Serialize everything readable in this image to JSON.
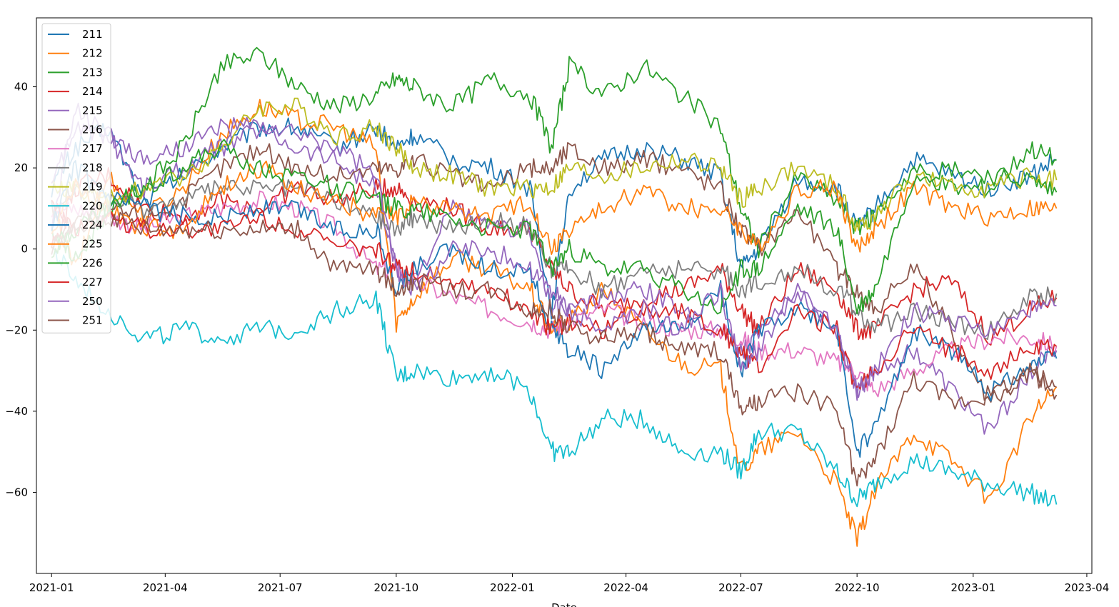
{
  "chart_data": {
    "type": "line",
    "title": "",
    "xlabel": "Date",
    "ylabel": "",
    "x_ticks": [
      "2021-01",
      "2021-04",
      "2021-07",
      "2021-10",
      "2022-01",
      "2022-04",
      "2022-07",
      "2022-10",
      "2023-01",
      "2023-04"
    ],
    "y_ticks": [
      "40",
      "20",
      "0",
      "−20",
      "−40",
      "−60"
    ],
    "ylim": [
      -80,
      57
    ],
    "xlim": [
      "2020-12-20",
      "2023-04-05"
    ],
    "legend_position": "upper-left",
    "x": [
      "2021-01-01",
      "2021-01-20",
      "2021-02-15",
      "2021-03-15",
      "2021-04-15",
      "2021-05-15",
      "2021-06-15",
      "2021-07-15",
      "2021-08-15",
      "2021-09-15",
      "2021-10-01",
      "2021-10-15",
      "2021-11-15",
      "2021-12-15",
      "2022-01-15",
      "2022-02-01",
      "2022-02-15",
      "2022-03-15",
      "2022-04-15",
      "2022-05-15",
      "2022-06-15",
      "2022-07-01",
      "2022-07-15",
      "2022-08-15",
      "2022-09-15",
      "2022-10-01",
      "2022-10-15",
      "2022-11-15",
      "2022-12-15",
      "2023-01-15",
      "2023-02-15",
      "2023-03-08"
    ],
    "series": [
      {
        "name": "211",
        "color": "#1f77b4",
        "values": [
          15,
          25,
          30,
          12,
          18,
          25,
          30,
          30,
          25,
          30,
          25,
          28,
          22,
          20,
          15,
          -15,
          15,
          22,
          25,
          22,
          18,
          -5,
          0,
          17,
          15,
          5,
          10,
          22,
          18,
          15,
          18,
          22
        ]
      },
      {
        "name": "212",
        "color": "#ff7f0e",
        "values": [
          10,
          -5,
          18,
          8,
          15,
          28,
          35,
          32,
          30,
          25,
          -18,
          -12,
          -2,
          -5,
          -10,
          -20,
          -18,
          -10,
          -20,
          -28,
          -30,
          -55,
          -50,
          -45,
          -58,
          -72,
          -60,
          -45,
          -52,
          -62,
          -42,
          -34
        ]
      },
      {
        "name": "213",
        "color": "#2ca02c",
        "values": [
          5,
          -3,
          10,
          15,
          25,
          45,
          48,
          40,
          35,
          38,
          42,
          40,
          35,
          42,
          38,
          25,
          45,
          38,
          45,
          38,
          30,
          10,
          0,
          18,
          12,
          5,
          8,
          20,
          15,
          15,
          25,
          22
        ]
      },
      {
        "name": "214",
        "color": "#d62728",
        "values": [
          0,
          15,
          18,
          10,
          8,
          12,
          10,
          15,
          12,
          15,
          15,
          12,
          10,
          5,
          5,
          -5,
          -10,
          -15,
          -12,
          -10,
          -5,
          -15,
          -20,
          -5,
          -10,
          -20,
          -20,
          -10,
          -8,
          -22,
          -15,
          -12
        ]
      },
      {
        "name": "215",
        "color": "#9467bd",
        "values": [
          5,
          35,
          28,
          15,
          20,
          25,
          30,
          25,
          22,
          15,
          -5,
          -8,
          10,
          5,
          5,
          -15,
          -15,
          -12,
          -10,
          -15,
          -20,
          -25,
          -22,
          -10,
          -20,
          -35,
          -30,
          -25,
          -35,
          -45,
          -30,
          -25
        ]
      },
      {
        "name": "216",
        "color": "#8c564b",
        "values": [
          0,
          8,
          10,
          8,
          12,
          20,
          25,
          20,
          18,
          20,
          20,
          22,
          18,
          15,
          20,
          20,
          25,
          20,
          22,
          20,
          15,
          5,
          0,
          10,
          -5,
          -10,
          -15,
          -5,
          -20,
          -38,
          -30,
          -36
        ]
      },
      {
        "name": "217",
        "color": "#e377c2",
        "values": [
          10,
          10,
          8,
          5,
          8,
          10,
          12,
          10,
          5,
          -5,
          -5,
          -8,
          -12,
          -15,
          -18,
          -20,
          -18,
          -15,
          -18,
          -20,
          -20,
          -22,
          -25,
          -25,
          -28,
          -30,
          -35,
          -30,
          -25,
          -22,
          -22,
          -24
        ]
      },
      {
        "name": "218",
        "color": "#7f7f7f",
        "values": [
          10,
          15,
          12,
          10,
          12,
          15,
          15,
          15,
          12,
          8,
          5,
          8,
          5,
          8,
          5,
          -5,
          -5,
          -10,
          -5,
          -5,
          -5,
          -10,
          -8,
          -5,
          -10,
          -15,
          -20,
          -15,
          -18,
          -20,
          -12,
          -11
        ]
      },
      {
        "name": "219",
        "color": "#bcbd22",
        "values": [
          15,
          15,
          12,
          15,
          18,
          25,
          35,
          35,
          28,
          30,
          25,
          20,
          18,
          15,
          15,
          15,
          20,
          18,
          20,
          22,
          20,
          12,
          15,
          20,
          15,
          5,
          8,
          18,
          15,
          15,
          18,
          17
        ]
      },
      {
        "name": "220",
        "color": "#17becf",
        "values": [
          0,
          -8,
          -15,
          -22,
          -20,
          -22,
          -20,
          -20,
          -15,
          -12,
          -32,
          -30,
          -32,
          -30,
          -35,
          -50,
          -50,
          -42,
          -42,
          -50,
          -50,
          -55,
          -45,
          -45,
          -55,
          -62,
          -58,
          -52,
          -55,
          -58,
          -60,
          -63
        ]
      },
      {
        "name": "224",
        "color": "#1f77b4",
        "values": [
          5,
          20,
          12,
          10,
          8,
          8,
          10,
          10,
          5,
          5,
          -10,
          -5,
          0,
          -5,
          -5,
          -20,
          -25,
          -30,
          -20,
          -20,
          -10,
          -30,
          -20,
          -15,
          -20,
          -50,
          -45,
          -20,
          -25,
          -35,
          -28,
          -27
        ]
      },
      {
        "name": "225",
        "color": "#ff7f0e",
        "values": [
          5,
          15,
          10,
          5,
          5,
          15,
          20,
          15,
          12,
          8,
          8,
          12,
          10,
          8,
          12,
          0,
          5,
          10,
          15,
          10,
          10,
          5,
          0,
          15,
          15,
          0,
          5,
          15,
          10,
          8,
          10,
          10
        ]
      },
      {
        "name": "226",
        "color": "#2ca02c",
        "values": [
          0,
          5,
          10,
          15,
          20,
          25,
          20,
          18,
          15,
          12,
          10,
          10,
          8,
          5,
          5,
          -5,
          0,
          -5,
          -5,
          -10,
          -15,
          -5,
          -5,
          10,
          5,
          -15,
          -10,
          18,
          20,
          18,
          17,
          14
        ]
      },
      {
        "name": "227",
        "color": "#d62728",
        "values": [
          10,
          5,
          8,
          5,
          5,
          5,
          8,
          5,
          0,
          0,
          -5,
          -5,
          -8,
          -10,
          -15,
          -20,
          -18,
          -20,
          -15,
          -15,
          -20,
          -25,
          -30,
          -15,
          -20,
          -35,
          -30,
          -20,
          -25,
          -30,
          -25,
          -24
        ]
      },
      {
        "name": "250",
        "color": "#9467bd",
        "values": [
          15,
          30,
          28,
          22,
          25,
          30,
          30,
          28,
          25,
          18,
          -5,
          -10,
          0,
          0,
          -5,
          -10,
          -15,
          -20,
          -15,
          -20,
          -10,
          -30,
          -25,
          -10,
          -20,
          -35,
          -30,
          -15,
          -18,
          -20,
          -15,
          -14
        ]
      },
      {
        "name": "251",
        "color": "#8c564b",
        "values": [
          0,
          5,
          8,
          5,
          5,
          5,
          5,
          5,
          -5,
          -5,
          -10,
          -8,
          -10,
          -10,
          -15,
          -15,
          -20,
          -22,
          -20,
          -25,
          -25,
          -40,
          -38,
          -35,
          -40,
          -58,
          -52,
          -32,
          -38,
          -36,
          -30,
          -34
        ]
      }
    ]
  }
}
